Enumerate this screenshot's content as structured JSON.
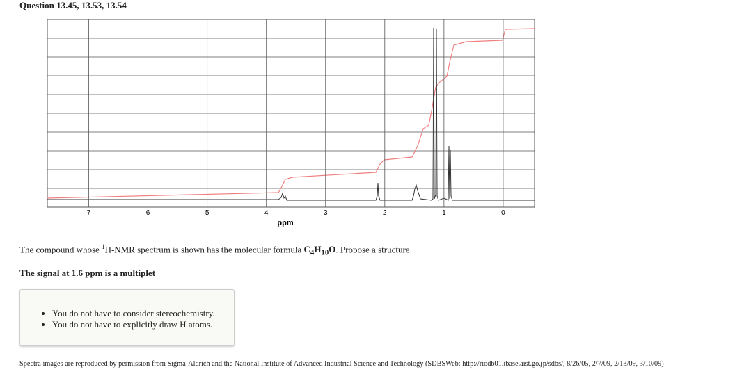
{
  "header": {
    "title": "Question 13.45, 13.53, 13.54"
  },
  "spectrum": {
    "xlabel": "ppm",
    "xlim": [
      7.7,
      -0.53
    ],
    "xticks": [
      7,
      6,
      5,
      4,
      3,
      2,
      1,
      0
    ]
  },
  "question": {
    "parts": [
      "The compound whose ",
      "1",
      "H-NMR spectrum is shown has the molecular formula ",
      "C",
      "4",
      "H",
      "10",
      "O",
      ". Propose a structure."
    ],
    "note": "The signal at 1.6 ppm is a multiplet"
  },
  "hints": [
    "You do not have to consider stereochemistry.",
    "You do not have to explicitly draw H atoms."
  ],
  "footer": "Spectra images are reproduced by permission from Sigma-Aldrich and the National Institute of Advanced Industrial Science and Technology (SDBSWeb: http://riodb01.ibase.aist.go.jp/sdbs/, 8/26/05, 2/7/09, 2/13/09, 3/10/09)"
}
